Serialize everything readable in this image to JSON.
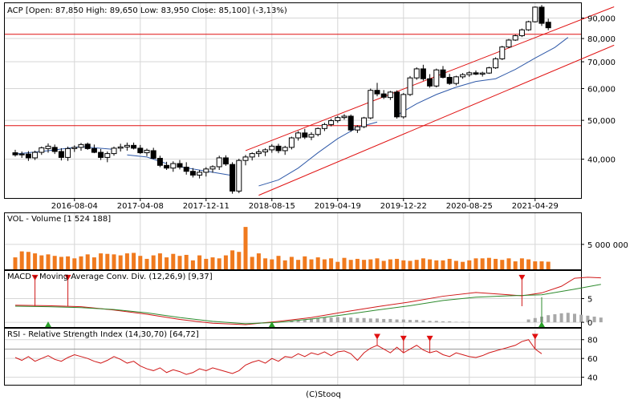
{
  "footer": "(C)Stooq",
  "chart_data": [
    {
      "panel": "price",
      "type": "candlestick",
      "title": "ACP [Open: 87,850  High: 89,650  Low: 83,950  Close: 85,100] (-3,13%)",
      "ylim": [
        32000,
        98000
      ],
      "y_scale": "log",
      "y_ticks": [
        "40,000",
        "50,000",
        "60,000",
        "70,000",
        "80,000",
        "90,000"
      ],
      "y_tick_values": [
        40000,
        50000,
        60000,
        70000,
        80000,
        90000
      ],
      "x_ticks": [
        "2016-08-04",
        "2017-04-08",
        "2017-12-11",
        "2018-08-15",
        "2019-04-19",
        "2019-12-22",
        "2020-08-25",
        "2021-04-29"
      ],
      "x_tick_index": [
        9,
        19,
        29,
        39,
        49,
        59,
        69,
        79
      ],
      "horizontal_lines": [
        82000,
        48500
      ],
      "channel_upper": [
        [
          35,
          42000
        ],
        [
          91,
          96000
        ]
      ],
      "channel_lower": [
        [
          37,
          32500
        ],
        [
          91,
          77000
        ]
      ],
      "candles": [
        [
          41500,
          42200,
          40600,
          41000
        ],
        [
          41000,
          41800,
          40300,
          41200
        ],
        [
          41200,
          41900,
          39600,
          40300
        ],
        [
          40300,
          42000,
          39800,
          41600
        ],
        [
          41600,
          43000,
          41000,
          42700
        ],
        [
          42500,
          43800,
          41500,
          43100
        ],
        [
          42800,
          43500,
          41200,
          41800
        ],
        [
          41800,
          42600,
          39700,
          40400
        ],
        [
          40400,
          43000,
          39600,
          42500
        ],
        [
          42500,
          43300,
          41700,
          42800
        ],
        [
          42800,
          43900,
          42000,
          43500
        ],
        [
          43600,
          44000,
          42200,
          42500
        ],
        [
          42500,
          43500,
          41400,
          41600
        ],
        [
          41600,
          42400,
          39800,
          40400
        ],
        [
          40400,
          41800,
          39300,
          41300
        ],
        [
          41300,
          43000,
          40800,
          42600
        ],
        [
          42600,
          43700,
          41800,
          42900
        ],
        [
          42900,
          44000,
          42000,
          43300
        ],
        [
          43300,
          44000,
          42300,
          42600
        ],
        [
          42600,
          43400,
          41200,
          41500
        ],
        [
          41500,
          42500,
          40700,
          42100
        ],
        [
          42000,
          42700,
          40000,
          40200
        ],
        [
          40200,
          40800,
          38200,
          38600
        ],
        [
          38600,
          39400,
          37600,
          38000
        ],
        [
          38000,
          39500,
          37200,
          39000
        ],
        [
          39000,
          39800,
          37700,
          38200
        ],
        [
          38200,
          39300,
          36600,
          37300
        ],
        [
          37300,
          38000,
          36000,
          36500
        ],
        [
          36500,
          37600,
          35800,
          37100
        ],
        [
          37100,
          38200,
          36200,
          37800
        ],
        [
          37800,
          38600,
          37000,
          38300
        ],
        [
          38300,
          40800,
          37600,
          40300
        ],
        [
          40300,
          40900,
          38500,
          38900
        ],
        [
          38800,
          39300,
          32800,
          33300
        ],
        [
          33300,
          40100,
          32900,
          39700
        ],
        [
          39700,
          41000,
          38600,
          40500
        ],
        [
          40500,
          41600,
          39700,
          41300
        ],
        [
          41300,
          42300,
          40500,
          41700
        ],
        [
          41700,
          42600,
          40700,
          42200
        ],
        [
          42200,
          43600,
          41500,
          43100
        ],
        [
          43100,
          43700,
          41400,
          42000
        ],
        [
          42000,
          43200,
          41000,
          42800
        ],
        [
          42800,
          45500,
          42300,
          45200
        ],
        [
          45200,
          47000,
          44500,
          46500
        ],
        [
          46500,
          47600,
          44900,
          45400
        ],
        [
          45400,
          46700,
          44600,
          46100
        ],
        [
          46100,
          48000,
          45600,
          47700
        ],
        [
          47700,
          49300,
          47000,
          48800
        ],
        [
          48800,
          50500,
          48300,
          49900
        ],
        [
          49900,
          51300,
          49300,
          50800
        ],
        [
          50800,
          51800,
          50200,
          51200
        ],
        [
          51200,
          51700,
          46800,
          47300
        ],
        [
          47300,
          48600,
          46500,
          48200
        ],
        [
          48200,
          51000,
          47800,
          50700
        ],
        [
          50700,
          60000,
          50300,
          59400
        ],
        [
          59400,
          62000,
          57400,
          58200
        ],
        [
          58200,
          59500,
          56500,
          57100
        ],
        [
          57000,
          59200,
          56200,
          58800
        ],
        [
          58800,
          59400,
          50500,
          51000
        ],
        [
          51000,
          58500,
          50500,
          58000
        ],
        [
          58000,
          64500,
          57500,
          63800
        ],
        [
          63800,
          67800,
          63100,
          67200
        ],
        [
          67200,
          68800,
          62800,
          63500
        ],
        [
          63500,
          65200,
          60300,
          60900
        ],
        [
          60900,
          67300,
          60400,
          66800
        ],
        [
          66800,
          68300,
          63600,
          64000
        ],
        [
          64000,
          65300,
          61300,
          61800
        ],
        [
          61800,
          64600,
          61100,
          64200
        ],
        [
          64200,
          65600,
          63500,
          65000
        ],
        [
          65000,
          66300,
          64200,
          65700
        ],
        [
          65700,
          66600,
          64800,
          65200
        ],
        [
          65200,
          66100,
          64300,
          65600
        ],
        [
          65600,
          68000,
          65300,
          67600
        ],
        [
          67600,
          71800,
          67200,
          71200
        ],
        [
          71200,
          76700,
          70700,
          76200
        ],
        [
          76200,
          79800,
          75700,
          79300
        ],
        [
          79300,
          81800,
          78900,
          81300
        ],
        [
          81300,
          84700,
          80700,
          84100
        ],
        [
          84100,
          88600,
          83600,
          88100
        ],
        [
          88100,
          96200,
          87700,
          95800
        ],
        [
          95800,
          97000,
          86000,
          87300
        ],
        [
          87850,
          89650,
          83950,
          85100
        ]
      ],
      "ma_series": [
        [
          0,
          41200
        ],
        [
          5,
          42000
        ],
        [
          10,
          43000
        ],
        [
          15,
          42300
        ],
        [
          20,
          40500
        ],
        [
          25,
          38300
        ],
        [
          30,
          37100
        ],
        [
          33,
          36400
        ],
        [
          37,
          34300
        ],
        [
          40,
          35500
        ],
        [
          43,
          38000
        ],
        [
          46,
          41500
        ],
        [
          49,
          45000
        ],
        [
          52,
          48000
        ],
        [
          55,
          49500
        ],
        [
          58,
          51500
        ],
        [
          61,
          55000
        ],
        [
          64,
          58000
        ],
        [
          67,
          60500
        ],
        [
          70,
          62500
        ],
        [
          73,
          63500
        ],
        [
          76,
          67000
        ],
        [
          79,
          71500
        ],
        [
          82,
          76000
        ],
        [
          84,
          80500
        ]
      ],
      "ma_segments": [
        [
          [
            0,
            41200
          ],
          [
            5,
            42000
          ],
          [
            10,
            43000
          ],
          [
            15,
            42300
          ]
        ],
        [
          [
            17,
            41000
          ],
          [
            20,
            40500
          ],
          [
            23,
            39000
          ]
        ],
        [
          [
            25,
            38300
          ],
          [
            30,
            37100
          ],
          [
            33,
            36400
          ]
        ],
        [
          [
            37,
            34300
          ],
          [
            40,
            35500
          ],
          [
            43,
            38000
          ],
          [
            46,
            41500
          ],
          [
            49,
            45000
          ],
          [
            52,
            48000
          ],
          [
            55,
            49500
          ]
        ],
        [
          [
            58,
            51500
          ],
          [
            61,
            55000
          ],
          [
            64,
            58000
          ],
          [
            67,
            60500
          ],
          [
            70,
            62500
          ],
          [
            73,
            63500
          ],
          [
            76,
            67000
          ],
          [
            79,
            71500
          ],
          [
            82,
            76000
          ],
          [
            84,
            80500
          ]
        ]
      ]
    },
    {
      "panel": "volume",
      "type": "bar",
      "title": "VOL - Volume [1 524 188]",
      "ylim": [
        0,
        9000000
      ],
      "y_ticks": [
        "5 000 000"
      ],
      "y_tick_values": [
        5000000
      ],
      "values": [
        2400000,
        3600000,
        3500000,
        3200000,
        2800000,
        3000000,
        2700000,
        2500000,
        2600000,
        2200000,
        2600000,
        3000000,
        2400000,
        3200000,
        3100000,
        3000000,
        2800000,
        3200000,
        3300000,
        2700000,
        2100000,
        2800000,
        3200000,
        2400000,
        3100000,
        2700000,
        2900000,
        1800000,
        2800000,
        2100000,
        2400000,
        2200000,
        2800000,
        3800000,
        3500000,
        8500000,
        2500000,
        3200000,
        2200000,
        2000000,
        2700000,
        1800000,
        2500000,
        1900000,
        2600000,
        2000000,
        2400000,
        2000000,
        2200000,
        1500000,
        2300000,
        1900000,
        2100000,
        1900000,
        2000000,
        2200000,
        1700000,
        2000000,
        2100000,
        1800000,
        1700000,
        1900000,
        2200000,
        2000000,
        1800000,
        1800000,
        2100000,
        1700000,
        1500000,
        1800000,
        2200000,
        2200000,
        2300000,
        2100000,
        1900000,
        2200000,
        1600000,
        2200000,
        2000000,
        1600000,
        1600000,
        1524188
      ]
    },
    {
      "panel": "macd",
      "type": "line",
      "title": "MACD - Moving Average Conv. Div. (12,26,9) [9,37]",
      "ylim": [
        -1,
        10.5
      ],
      "y_ticks": [
        "5",
        "0"
      ],
      "y_tick_values": [
        5,
        0
      ],
      "macd": [
        [
          0,
          3.6
        ],
        [
          5,
          3.5
        ],
        [
          10,
          3.3
        ],
        [
          15,
          2.6
        ],
        [
          20,
          1.7
        ],
        [
          25,
          0.6
        ],
        [
          30,
          -0.2
        ],
        [
          35,
          -0.5
        ],
        [
          40,
          0.2
        ],
        [
          45,
          1.0
        ],
        [
          50,
          2.2
        ],
        [
          55,
          3.3
        ],
        [
          60,
          4.3
        ],
        [
          65,
          5.5
        ],
        [
          70,
          6.3
        ],
        [
          75,
          5.8
        ],
        [
          77,
          5.6
        ],
        [
          80,
          6.2
        ],
        [
          83,
          7.6
        ],
        [
          85,
          9.3
        ],
        [
          87,
          9.5
        ],
        [
          89,
          9.37
        ]
      ],
      "signal": [
        [
          0,
          3.4
        ],
        [
          5,
          3.3
        ],
        [
          10,
          3.1
        ],
        [
          15,
          2.7
        ],
        [
          20,
          2.0
        ],
        [
          25,
          1.0
        ],
        [
          30,
          0.2
        ],
        [
          35,
          -0.3
        ],
        [
          40,
          0.0
        ],
        [
          45,
          0.7
        ],
        [
          50,
          1.6
        ],
        [
          55,
          2.6
        ],
        [
          60,
          3.5
        ],
        [
          65,
          4.6
        ],
        [
          70,
          5.3
        ],
        [
          75,
          5.6
        ],
        [
          80,
          5.8
        ],
        [
          85,
          7.0
        ],
        [
          89,
          8.0
        ]
      ],
      "hist": [
        0,
        0,
        0,
        0,
        0,
        0,
        0,
        0,
        0,
        0,
        0,
        0,
        0,
        0,
        0,
        0,
        0,
        0,
        0,
        0,
        0,
        0,
        0,
        0,
        0,
        0,
        0,
        0,
        0,
        0,
        0,
        0,
        0,
        0,
        0,
        0,
        0,
        0,
        0,
        0,
        0,
        0,
        0.3,
        0.4,
        0.6,
        0.8,
        0.9,
        1.0,
        1.0,
        1.1,
        1.0,
        1.0,
        0.9,
        0.9,
        0.8,
        0.8,
        0.7,
        0.7,
        0.6,
        0.6,
        0.5,
        0.5,
        0.4,
        0.3,
        0.3,
        0.2,
        0.2,
        0.1,
        0.1,
        0.1,
        0,
        0,
        0,
        0,
        0,
        0,
        0,
        0,
        0.6,
        0.9,
        1.2,
        1.5,
        1.7,
        1.9,
        2.0,
        1.8,
        1.6,
        1.4,
        1.2,
        1.0
      ],
      "sell_signals": [
        [
          3,
          9.0
        ],
        [
          8,
          9.0
        ],
        [
          77,
          9.0
        ]
      ],
      "buy_signals": [
        [
          5,
          0
        ],
        [
          39,
          0
        ],
        [
          80,
          0
        ]
      ]
    },
    {
      "panel": "rsi",
      "type": "line",
      "title": "RSI - Relative Strength Index (14,30,70) [64,72]",
      "ylim": [
        32,
        90
      ],
      "y_ticks": [
        "80",
        "60",
        "40"
      ],
      "y_tick_values": [
        80,
        60,
        40
      ],
      "values": [
        61,
        58,
        62,
        57,
        60,
        63,
        59,
        57,
        61,
        64,
        62,
        60,
        57,
        55,
        58,
        62,
        59,
        55,
        57,
        52,
        49,
        47,
        50,
        45,
        48,
        46,
        43,
        45,
        49,
        47,
        50,
        48,
        46,
        44,
        47,
        53,
        56,
        58,
        55,
        60,
        57,
        62,
        61,
        65,
        62,
        66,
        64,
        67,
        63,
        67,
        68,
        65,
        58,
        66,
        71,
        74,
        70,
        66,
        72,
        66,
        70,
        74,
        69,
        66,
        68,
        64,
        62,
        66,
        64,
        62,
        61,
        63,
        66,
        68,
        70,
        72,
        74,
        78,
        80,
        70,
        65
      ],
      "sell_signals": [
        [
          55,
          81
        ],
        [
          59,
          79
        ],
        [
          63,
          79
        ],
        [
          79,
          81
        ]
      ]
    }
  ]
}
